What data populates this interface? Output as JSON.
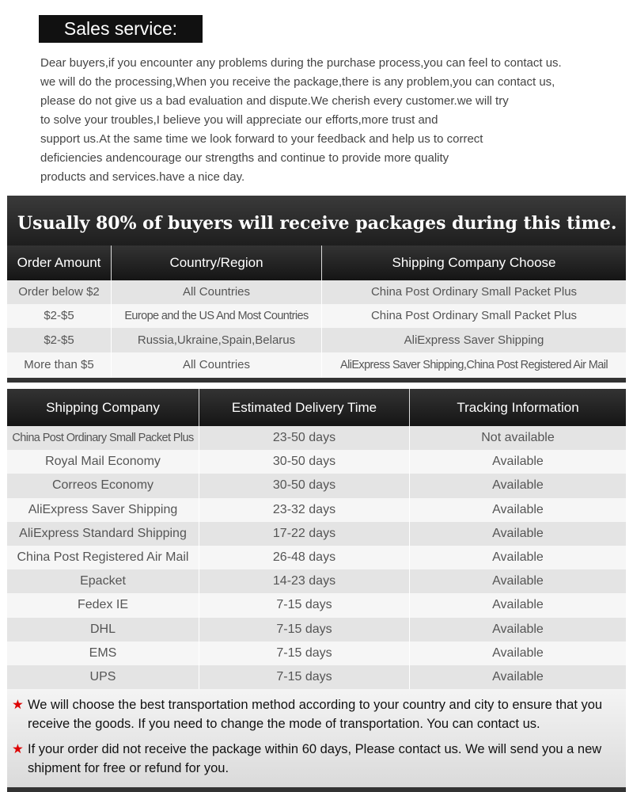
{
  "header": {
    "title": "Sales service:"
  },
  "intro": [
    "Dear buyers,if you encounter any problems during the purchase process,you can feel to contact us.",
    "we will do the processing,When you receive the package,there is any problem,you can contact us,",
    "please do not give us a bad evaluation and dispute.We cherish every customer.we will try",
    "to solve your troubles,I believe you will appreciate our efforts,more trust and",
    "support us.At the same time we look forward to your feedback and help us to correct",
    "deficiencies andencourage our strengths and continue to provide more quality",
    "products and services.have a nice day."
  ],
  "table1": {
    "title": "Usually 80% of buyers will receive packages during this time.",
    "headers": [
      "Order Amount",
      "Country/Region",
      "Shipping Company Choose"
    ],
    "rows": [
      [
        "Order below $2",
        "All Countries",
        "China Post Ordinary Small Packet Plus"
      ],
      [
        "$2-$5",
        "Europe and the US And Most Countries",
        "China Post Ordinary Small Packet Plus"
      ],
      [
        "$2-$5",
        "Russia,Ukraine,Spain,Belarus",
        "AliExpress Saver Shipping"
      ],
      [
        "More than $5",
        "All Countries",
        "AliExpress Saver Shipping,China Post Registered Air Mail"
      ]
    ]
  },
  "table2": {
    "headers": [
      "Shipping Company",
      "Estimated Delivery Time",
      "Tracking Information"
    ],
    "rows": [
      [
        "China Post Ordinary Small Packet Plus",
        "23-50 days",
        "Not available"
      ],
      [
        "Royal Mail Economy",
        "30-50 days",
        "Available"
      ],
      [
        "Correos Economy",
        "30-50 days",
        "Available"
      ],
      [
        "AliExpress Saver Shipping",
        "23-32 days",
        "Available"
      ],
      [
        "AliExpress Standard Shipping",
        "17-22 days",
        "Available"
      ],
      [
        "China Post Registered Air Mail",
        "26-48 days",
        "Available"
      ],
      [
        "Epacket",
        "14-23 days",
        "Available"
      ],
      [
        "Fedex IE",
        "7-15 days",
        "Available"
      ],
      [
        "DHL",
        "7-15 days",
        "Available"
      ],
      [
        "EMS",
        "7-15 days",
        "Available"
      ],
      [
        "UPS",
        "7-15 days",
        "Available"
      ]
    ]
  },
  "notes": [
    "We will choose the best transportation method according to your country and city to ensure that you receive the goods. If you need to change the mode of transportation. You can contact us.",
    "If your order did not receive the package within 60 days, Please contact us. We will send you a new shipment for free or refund for you."
  ],
  "colors": {
    "star": "#dd0000",
    "header_bg": "#1e1e1e"
  }
}
